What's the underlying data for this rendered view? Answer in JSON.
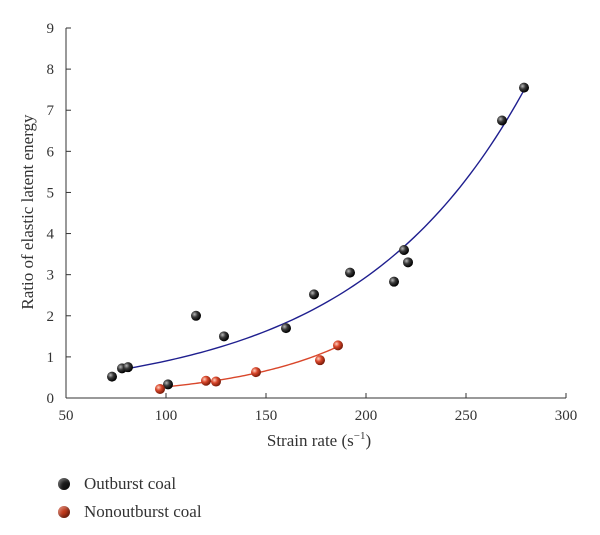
{
  "chart_data": {
    "type": "scatter",
    "xlabel_main": "Strain rate (s",
    "xlabel_sup": "−1",
    "xlabel_end": ")",
    "ylabel": "Ratio of elastic latent energy",
    "xlim": [
      50,
      300
    ],
    "ylim": [
      0,
      9
    ],
    "xticks": [
      50,
      100,
      150,
      200,
      250,
      300
    ],
    "yticks": [
      0,
      1,
      2,
      3,
      4,
      5,
      6,
      7,
      8,
      9
    ],
    "grid": false,
    "legend_position": "bottom-left",
    "series": [
      {
        "name": "Outburst coal",
        "marker_color": "#1a1a1a",
        "fit_color": "#1f1f8f",
        "fit": {
          "kind": "exponential",
          "x_range": [
            77,
            280
          ],
          "points": [
            [
              77,
              0.68
            ],
            [
              100,
              0.9
            ],
            [
              130,
              1.3
            ],
            [
              160,
              1.85
            ],
            [
              190,
              2.6
            ],
            [
              220,
              3.7
            ],
            [
              250,
              5.3
            ],
            [
              280,
              7.6
            ]
          ]
        },
        "points": [
          [
            73,
            0.52
          ],
          [
            78,
            0.72
          ],
          [
            81,
            0.75
          ],
          [
            101,
            0.33
          ],
          [
            115,
            2.0
          ],
          [
            129,
            1.5
          ],
          [
            160,
            1.7
          ],
          [
            174,
            2.52
          ],
          [
            192,
            3.05
          ],
          [
            214,
            2.83
          ],
          [
            219,
            3.6
          ],
          [
            221,
            3.3
          ],
          [
            268,
            6.75
          ],
          [
            279,
            7.55
          ]
        ]
      },
      {
        "name": "Nonoutburst coal",
        "marker_color": "#c0391b",
        "fit_color": "#d9472b",
        "fit": {
          "kind": "exponential",
          "x_range": [
            97,
            186
          ],
          "points": [
            [
              97,
              0.25
            ],
            [
              120,
              0.4
            ],
            [
              145,
              0.62
            ],
            [
              165,
              0.87
            ],
            [
              186,
              1.22
            ]
          ]
        },
        "points": [
          [
            97,
            0.22
          ],
          [
            120,
            0.42
          ],
          [
            125,
            0.4
          ],
          [
            145,
            0.63
          ],
          [
            177,
            0.92
          ],
          [
            186,
            1.28
          ]
        ]
      }
    ]
  }
}
